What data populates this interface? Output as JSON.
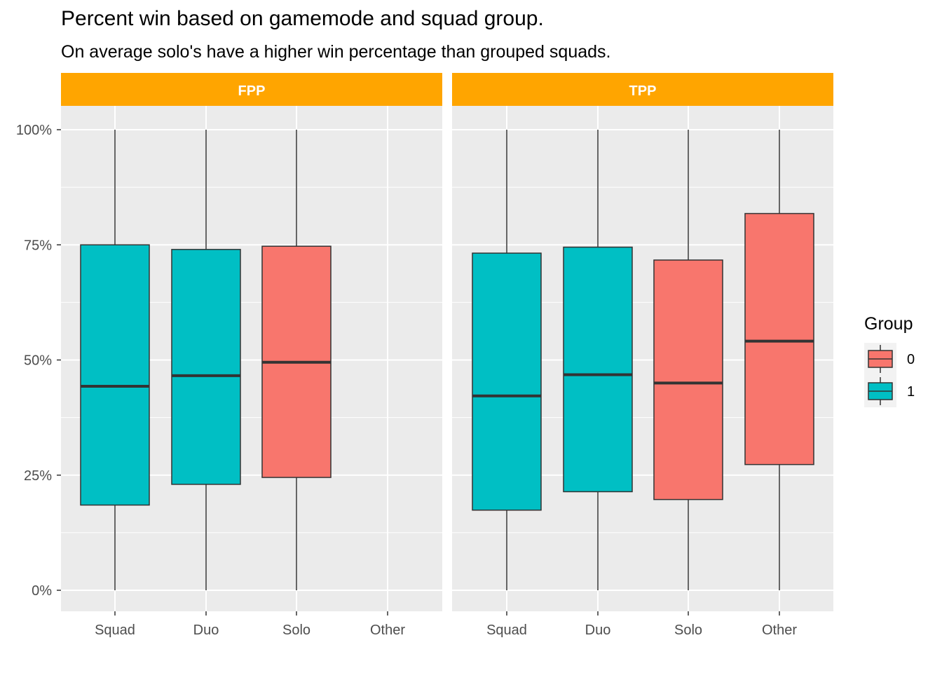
{
  "chart_data": {
    "type": "boxplot",
    "title": "Percent win based on gamemode and squad group.",
    "subtitle": "On average solo's have a higher win percentage than grouped squads.",
    "xlabel": "",
    "ylabel": "",
    "ylim": [
      0,
      1
    ],
    "y_ticks": [
      {
        "value": 0,
        "label": "0%"
      },
      {
        "value": 0.25,
        "label": "25%"
      },
      {
        "value": 0.5,
        "label": "50%"
      },
      {
        "value": 0.75,
        "label": "75%"
      },
      {
        "value": 1.0,
        "label": "100%"
      }
    ],
    "categories": [
      "Squad",
      "Duo",
      "Solo",
      "Other"
    ],
    "grid": true,
    "strip_color": "#FFA500",
    "legend": {
      "title": "Group",
      "placement": "right",
      "entries": [
        {
          "label": "0",
          "color": "#F8766D"
        },
        {
          "label": "1",
          "color": "#00BFC4"
        }
      ]
    },
    "facets": [
      {
        "name": "FPP",
        "boxes": [
          {
            "category": "Squad",
            "group": "1",
            "min": 0.0,
            "q1": 0.185,
            "median": 0.443,
            "q3": 0.75,
            "max": 1.0
          },
          {
            "category": "Duo",
            "group": "1",
            "min": 0.0,
            "q1": 0.23,
            "median": 0.466,
            "q3": 0.74,
            "max": 1.0
          },
          {
            "category": "Solo",
            "group": "0",
            "min": 0.0,
            "q1": 0.245,
            "median": 0.495,
            "q3": 0.747,
            "max": 1.0
          }
        ]
      },
      {
        "name": "TPP",
        "boxes": [
          {
            "category": "Squad",
            "group": "1",
            "min": 0.0,
            "q1": 0.174,
            "median": 0.422,
            "q3": 0.732,
            "max": 1.0
          },
          {
            "category": "Duo",
            "group": "1",
            "min": 0.0,
            "q1": 0.214,
            "median": 0.468,
            "q3": 0.745,
            "max": 1.0
          },
          {
            "category": "Solo",
            "group": "0",
            "min": 0.0,
            "q1": 0.197,
            "median": 0.45,
            "q3": 0.717,
            "max": 1.0
          },
          {
            "category": "Other",
            "group": "0",
            "min": 0.0,
            "q1": 0.273,
            "median": 0.541,
            "q3": 0.818,
            "max": 1.0
          }
        ]
      }
    ]
  }
}
